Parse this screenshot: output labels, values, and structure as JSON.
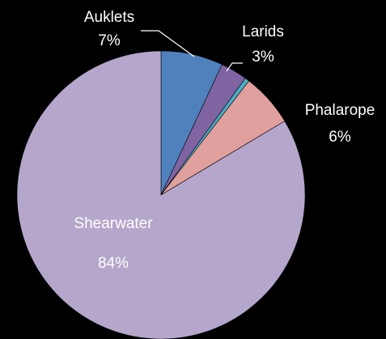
{
  "chart_data": {
    "type": "pie",
    "categories": [
      "Auklets",
      "Larids",
      null,
      "Phalarope",
      "Shearwater"
    ],
    "values": [
      7,
      3,
      0.5,
      6,
      84
    ],
    "value_labels": [
      "7%",
      "3%",
      null,
      "6%",
      "84%"
    ],
    "colors": [
      "#4f81bd",
      "#8064a2",
      "#4bacc6",
      "#e0a09e",
      "#b5a6cb"
    ]
  }
}
